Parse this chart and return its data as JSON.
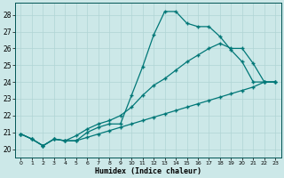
{
  "xlabel": "Humidex (Indice chaleur)",
  "background_color": "#cce8e8",
  "grid_color": "#b0d4d4",
  "line_color": "#007777",
  "xlim": [
    -0.5,
    23.5
  ],
  "ylim": [
    19.5,
    28.7
  ],
  "xticks": [
    0,
    1,
    2,
    3,
    4,
    5,
    6,
    7,
    8,
    9,
    10,
    11,
    12,
    13,
    14,
    15,
    16,
    17,
    18,
    19,
    20,
    21,
    22,
    23
  ],
  "yticks": [
    20,
    21,
    22,
    23,
    24,
    25,
    26,
    27,
    28
  ],
  "line1_x": [
    0,
    1,
    2,
    3,
    4,
    5,
    6,
    7,
    8,
    9,
    10,
    11,
    12,
    13,
    14,
    15,
    16,
    17,
    18,
    19,
    20,
    21,
    22,
    23
  ],
  "line1_y": [
    20.9,
    20.6,
    20.2,
    20.6,
    20.5,
    20.5,
    21.0,
    21.3,
    21.5,
    21.5,
    23.2,
    24.9,
    26.8,
    28.2,
    28.2,
    27.5,
    27.3,
    27.3,
    26.7,
    25.9,
    25.2,
    24.0,
    24.0,
    24.0
  ],
  "line2_x": [
    0,
    1,
    2,
    3,
    4,
    5,
    6,
    7,
    8,
    9,
    10,
    11,
    12,
    13,
    14,
    15,
    16,
    17,
    18,
    19,
    20,
    21,
    22,
    23
  ],
  "line2_y": [
    20.9,
    20.6,
    20.2,
    20.6,
    20.5,
    20.8,
    21.2,
    21.5,
    21.7,
    22.0,
    22.5,
    23.2,
    23.8,
    24.2,
    24.7,
    25.2,
    25.6,
    26.0,
    26.3,
    26.0,
    26.0,
    25.1,
    24.0,
    24.0
  ],
  "line3_x": [
    0,
    1,
    2,
    3,
    4,
    5,
    6,
    7,
    8,
    9,
    10,
    11,
    12,
    13,
    14,
    15,
    16,
    17,
    18,
    19,
    20,
    21,
    22,
    23
  ],
  "line3_y": [
    20.9,
    20.6,
    20.2,
    20.6,
    20.5,
    20.5,
    20.7,
    20.9,
    21.1,
    21.3,
    21.5,
    21.7,
    21.9,
    22.1,
    22.3,
    22.5,
    22.7,
    22.9,
    23.1,
    23.3,
    23.5,
    23.7,
    24.0,
    24.0
  ]
}
